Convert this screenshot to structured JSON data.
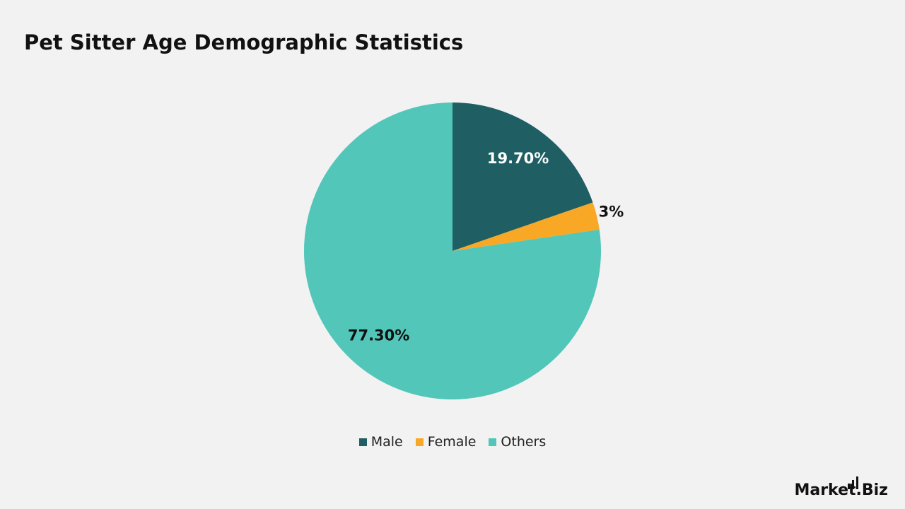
{
  "chart_data": {
    "type": "pie",
    "title": "Pet Sitter Age Demographic Statistics",
    "categories": [
      "Male",
      "Female",
      "Others"
    ],
    "values": [
      19.7,
      3,
      77.3
    ],
    "value_labels": [
      "19.70%",
      "3%",
      "77.30%"
    ],
    "colors": [
      "#1f5f63",
      "#f9a826",
      "#52c6b9"
    ],
    "legend": "bottom"
  },
  "logo": "Market.Biz"
}
